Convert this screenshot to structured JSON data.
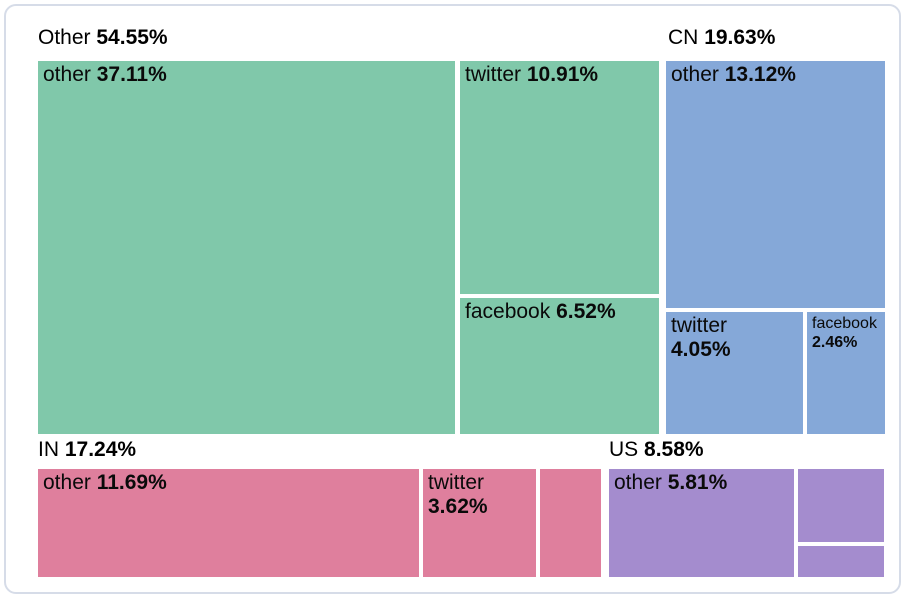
{
  "card": {
    "background": "#ffffff",
    "border_color": "#d6dce8"
  },
  "chart_data": {
    "type": "treemap",
    "title": "",
    "metric": "percent share",
    "label_format": "name value%",
    "groups": [
      {
        "label": "Other",
        "value": 54.55,
        "value_text": "54.55%",
        "color": "#80c8aa",
        "children": [
          {
            "label": "other",
            "value": 37.11,
            "value_text": "37.11%"
          },
          {
            "label": "twitter",
            "value": 10.91,
            "value_text": "10.91%"
          },
          {
            "label": "facebook",
            "value": 6.52,
            "value_text": "6.52%"
          }
        ]
      },
      {
        "label": "CN",
        "value": 19.63,
        "value_text": "19.63%",
        "color": "#85a8d8",
        "children": [
          {
            "label": "other",
            "value": 13.12,
            "value_text": "13.12%"
          },
          {
            "label": "twitter",
            "value": 4.05,
            "value_text": "4.05%"
          },
          {
            "label": "facebook",
            "value": 2.46,
            "value_text": "2.46%"
          }
        ]
      },
      {
        "label": "IN",
        "value": 17.24,
        "value_text": "17.24%",
        "color": "#df7f9d",
        "children": [
          {
            "label": "other",
            "value": 11.69,
            "value_text": "11.69%"
          },
          {
            "label": "twitter",
            "value": 3.62,
            "value_text": "3.62%"
          },
          {
            "label": "",
            "value": null,
            "value_text": ""
          }
        ]
      },
      {
        "label": "US",
        "value": 8.58,
        "value_text": "8.58%",
        "color": "#a48cce",
        "children": [
          {
            "label": "other",
            "value": 5.81,
            "value_text": "5.81%"
          },
          {
            "label": "",
            "value": null,
            "value_text": ""
          },
          {
            "label": "",
            "value": null,
            "value_text": ""
          }
        ]
      }
    ]
  }
}
